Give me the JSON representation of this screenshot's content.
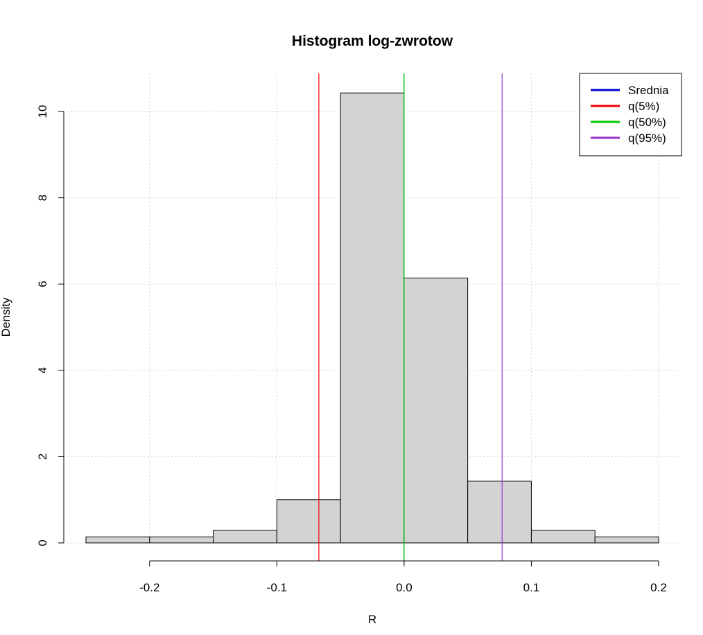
{
  "chart_data": {
    "type": "bar",
    "title": "Histogram log-zwrotow",
    "xlabel": "R",
    "ylabel": "Density",
    "xlim": [
      -0.25,
      0.2
    ],
    "ylim": [
      0,
      10.9
    ],
    "grid": true,
    "bins": [
      {
        "x0": -0.25,
        "x1": -0.2,
        "density": 0.14
      },
      {
        "x0": -0.2,
        "x1": -0.15,
        "density": 0.14
      },
      {
        "x0": -0.15,
        "x1": -0.1,
        "density": 0.29
      },
      {
        "x0": -0.1,
        "x1": -0.05,
        "density": 1.0
      },
      {
        "x0": -0.05,
        "x1": 0.0,
        "density": 10.43
      },
      {
        "x0": 0.0,
        "x1": 0.05,
        "density": 6.14
      },
      {
        "x0": 0.05,
        "x1": 0.1,
        "density": 1.43
      },
      {
        "x0": 0.1,
        "x1": 0.15,
        "density": 0.29
      },
      {
        "x0": 0.15,
        "x1": 0.2,
        "density": 0.14
      }
    ],
    "x_ticks": [
      -0.2,
      -0.1,
      0.0,
      0.1,
      0.2
    ],
    "x_tick_labels": [
      "-0.2",
      "-0.1",
      "0.0",
      "0.1",
      "0.2"
    ],
    "y_ticks": [
      0,
      2,
      4,
      6,
      8,
      10
    ],
    "y_tick_labels": [
      "0",
      "2",
      "4",
      "6",
      "8",
      "10"
    ],
    "vlines": [
      {
        "name": "Srednia",
        "x": 0.0,
        "color": "#0000cd"
      },
      {
        "name": "q(5%)",
        "x": -0.067,
        "color": "#ee0000"
      },
      {
        "name": "q(50%)",
        "x": 0.0,
        "color": "#00cc00"
      },
      {
        "name": "q(95%)",
        "x": 0.077,
        "color": "#9a32cd"
      }
    ],
    "legend_position": "top-right",
    "legend": [
      {
        "label": "Srednia",
        "color": "#0000cd"
      },
      {
        "label": "q(5%)",
        "color": "#ee0000"
      },
      {
        "label": "q(50%)",
        "color": "#00cc00"
      },
      {
        "label": "q(95%)",
        "color": "#9a32cd"
      }
    ],
    "colors": {
      "bar_fill": "#d3d3d3",
      "bar_stroke": "#000000",
      "grid": "#d3d3d3"
    }
  }
}
